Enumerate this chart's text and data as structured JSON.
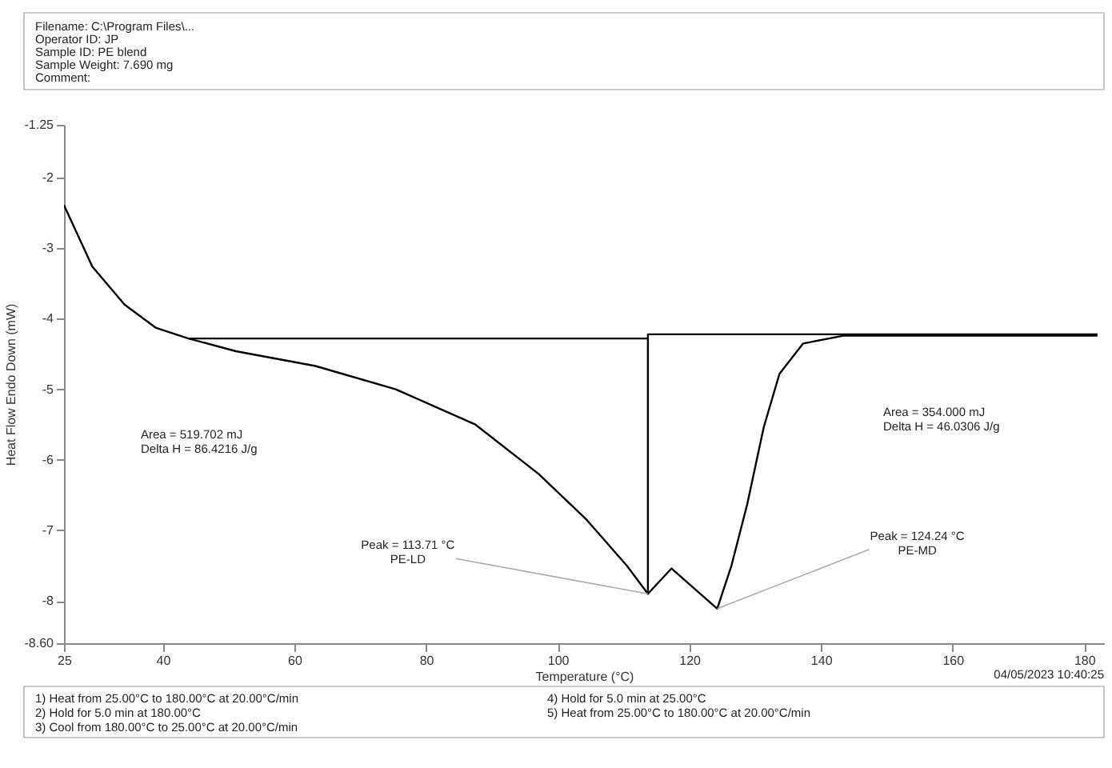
{
  "chart_data": {
    "type": "line",
    "xlabel": "Temperature (°C)",
    "ylabel": "Heat Flow Endo Down (mW)",
    "xlim": [
      25,
      183
    ],
    "xticks": [
      25,
      40,
      60,
      80,
      100,
      120,
      140,
      160,
      180
    ],
    "ylim": [
      -8.6,
      -1.25
    ],
    "yticks": [
      -1.25,
      -2,
      -3,
      -4,
      -5,
      -6,
      -7,
      -8,
      {
        "value": -8.6,
        "label": "-8.60"
      }
    ],
    "grid": false,
    "marker": "none",
    "line_style": "solid",
    "series": [
      {
        "color": "#000000",
        "x": [
          25,
          29.3,
          34.2,
          39,
          43.9,
          51.1,
          63.2,
          75.4,
          87.5,
          97.1,
          104.4,
          110.5,
          113.71,
          117.3,
          124.24,
          126.4,
          128.8,
          131.3,
          133.7,
          137.3,
          143.4,
          160,
          182
        ],
        "values": [
          -2.39,
          -3.26,
          -3.8,
          -4.13,
          -4.28,
          -4.46,
          -4.67,
          -5.0,
          -5.5,
          -6.2,
          -6.85,
          -7.5,
          -7.9,
          -7.54,
          -8.11,
          -7.5,
          -6.63,
          -5.54,
          -4.78,
          -4.35,
          -4.24,
          -4.24,
          -4.24
        ]
      },
      {
        "color": "#000000",
        "x": [
          44,
          113.71,
          113.71,
          113.71,
          182
        ],
        "values": [
          -4.28,
          -4.28,
          -7.9,
          -4.22,
          -4.22
        ]
      }
    ],
    "annotations": [
      "Filename:         C:\\Program Files\\...",
      "Operator ID:      JP",
      "Sample ID:        PE blend",
      "Sample Weight:  7.690 mg",
      "Comment:",
      "Area = 519.702 mJ",
      "Delta H = 86.4216 J/g",
      "Area = 354.000 mJ",
      "Delta H = 46.0306 J/g",
      "04/05/2023 10:40:25",
      "1) Heat from 25.00°C to 180.00°C at 20.00°C/min",
      "2) Hold for 5.0 min at 180.00°C",
      "3) Cool from 180.00°C to 25.00°C at 20.00°C/min",
      "4) Hold for 5.0 min at 25.00°C",
      "5) Heat from 25.00°C to 180.00°C at 20.00°C/min",
      {
        "text": "Peak = 113.71 °C\nPE-LD",
        "x": 113.71,
        "y": -7.9
      },
      {
        "text": "Peak = 124.24 °C\nPE-MD",
        "x": 124.24,
        "y": -8.11
      }
    ]
  }
}
